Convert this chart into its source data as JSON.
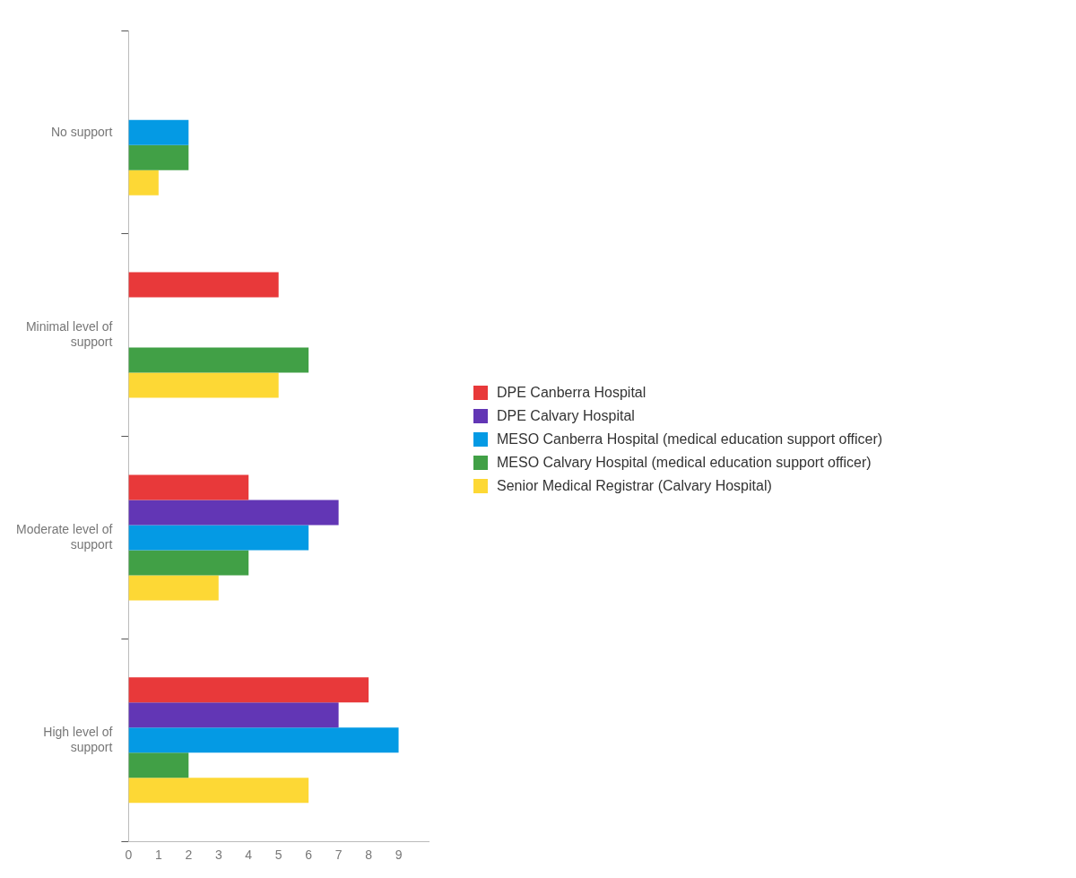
{
  "chart_data": {
    "type": "bar",
    "orientation": "horizontal",
    "categories": [
      "No support",
      "Minimal level of support",
      "Moderate level of support",
      "High level of support"
    ],
    "series": [
      {
        "name": "DPE Canberra Hospital",
        "color": "#e8393a",
        "values": [
          0,
          5,
          4,
          8
        ]
      },
      {
        "name": "DPE Calvary Hospital",
        "color": "#6236b5",
        "values": [
          0,
          0,
          7,
          7
        ]
      },
      {
        "name": "MESO Canberra Hospital (medical education support officer)",
        "color": "#049ae4",
        "values": [
          2,
          0,
          6,
          9
        ]
      },
      {
        "name": "MESO Calvary Hospital (medical education support officer)",
        "color": "#41a046",
        "values": [
          2,
          6,
          4,
          2
        ]
      },
      {
        "name": "Senior Medical Registrar (Calvary Hospital)",
        "color": "#fdd835",
        "values": [
          1,
          5,
          3,
          6
        ]
      }
    ],
    "xlim": [
      0,
      10
    ],
    "xticks": [
      0,
      1,
      2,
      3,
      4,
      5,
      6,
      7,
      8,
      9
    ],
    "grid": false,
    "legend": "right"
  }
}
